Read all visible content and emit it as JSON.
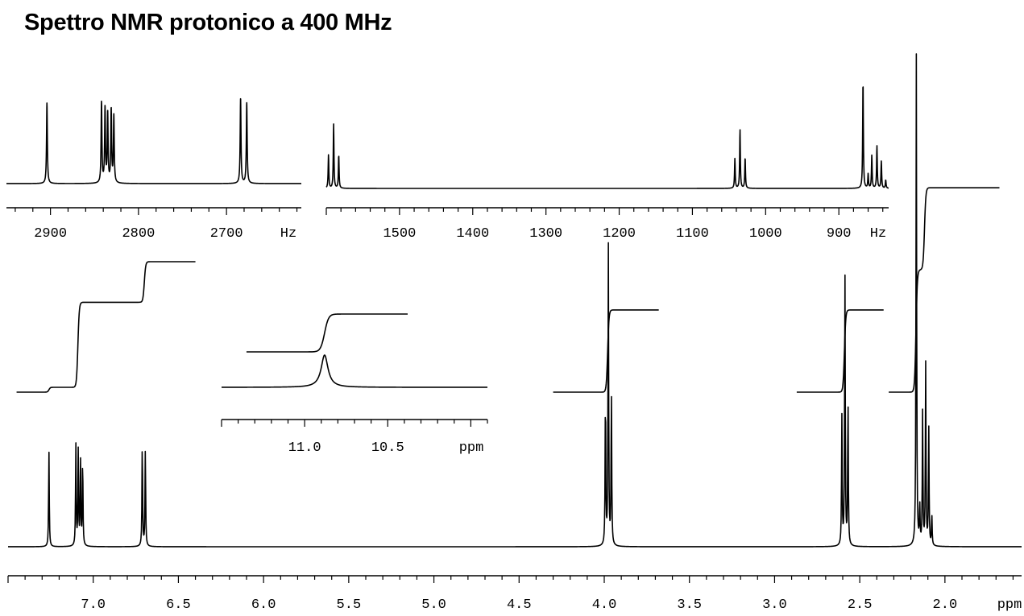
{
  "title": "Spettro NMR protonico a 400 MHz",
  "chart_data": [
    {
      "id": "main",
      "type": "line",
      "subtype": "nmr-spectrum",
      "xlabel": "ppm",
      "x_reversed": true,
      "xlim": [
        7.5,
        1.55
      ],
      "tick_labels": [
        "7.0",
        "6.5",
        "6.0",
        "5.5",
        "5.0",
        "4.5",
        "4.0",
        "3.5",
        "3.0",
        "2.5",
        "2.0"
      ],
      "peaks": [
        {
          "ppm": 7.26,
          "height": 0.53
        },
        {
          "ppm": 7.102,
          "height": 0.56
        },
        {
          "ppm": 7.088,
          "height": 0.52
        },
        {
          "ppm": 7.075,
          "height": 0.5
        },
        {
          "ppm": 7.062,
          "height": 0.48
        },
        {
          "ppm": 6.712,
          "height": 0.58
        },
        {
          "ppm": 6.694,
          "height": 0.54
        },
        {
          "ppm": 3.993,
          "height": 0.85
        },
        {
          "ppm": 3.976,
          "height": 1.67
        },
        {
          "ppm": 3.958,
          "height": 0.85
        },
        {
          "ppm": 2.605,
          "height": 0.71
        },
        {
          "ppm": 2.587,
          "height": 1.51
        },
        {
          "ppm": 2.569,
          "height": 0.81
        },
        {
          "ppm": 2.168,
          "height": 2.72
        },
        {
          "ppm": 2.148,
          "height": 0.22
        },
        {
          "ppm": 2.131,
          "height": 0.74
        },
        {
          "ppm": 2.113,
          "height": 1.0
        },
        {
          "ppm": 2.095,
          "height": 0.66
        },
        {
          "ppm": 2.077,
          "height": 0.17
        }
      ],
      "integrals": [
        {
          "from": 7.45,
          "to": 6.4,
          "steps": [
            {
              "ppm": 7.26,
              "rise": 0.05
            },
            {
              "ppm": 7.09,
              "rise": 0.88
            },
            {
              "ppm": 6.7,
              "rise": 0.42
            }
          ]
        },
        {
          "from": 4.3,
          "to": 3.68,
          "steps": [
            {
              "ppm": 3.98,
              "rise": 0.88
            }
          ]
        },
        {
          "from": 2.87,
          "to": 2.36,
          "steps": [
            {
              "ppm": 2.59,
              "rise": 0.88
            }
          ]
        },
        {
          "from": 2.33,
          "to": 1.68,
          "steps": [
            {
              "ppm": 2.17,
              "rise": 1.0
            },
            {
              "ppm": 2.12,
              "rise": 0.67
            }
          ]
        }
      ]
    },
    {
      "id": "inset-ppm",
      "type": "line",
      "subtype": "nmr-spectrum",
      "xlabel": "ppm",
      "x_reversed": true,
      "xlim": [
        11.5,
        9.9
      ],
      "tick_labels": [
        "11.0",
        "10.5"
      ],
      "peaks": [
        {
          "ppm": 10.88,
          "height": 1.0,
          "width": 0.025
        }
      ],
      "integrals": [
        {
          "from": 11.35,
          "to": 10.38,
          "steps": [
            {
              "ppm": 10.88,
              "rise": 1.0
            }
          ]
        }
      ]
    },
    {
      "id": "inset-hz-left",
      "type": "line",
      "subtype": "nmr-expansion",
      "xlabel": "Hz",
      "x_reversed": true,
      "xlim": [
        2950,
        2615
      ],
      "tick_labels": [
        "2900",
        "2800",
        "2700"
      ],
      "peaks": [
        {
          "hz": 2904,
          "height": 1.0
        },
        {
          "hz": 2842,
          "height": 1.0
        },
        {
          "hz": 2838,
          "height": 0.92
        },
        {
          "hz": 2835,
          "height": 0.86
        },
        {
          "hz": 2831,
          "height": 0.9
        },
        {
          "hz": 2828,
          "height": 0.83
        },
        {
          "hz": 2684,
          "height": 1.06
        },
        {
          "hz": 2677,
          "height": 1.0
        }
      ]
    },
    {
      "id": "inset-hz-right",
      "type": "line",
      "subtype": "nmr-expansion",
      "xlabel": "Hz",
      "x_reversed": true,
      "xlim": [
        1600,
        832
      ],
      "tick_labels": [
        "1500",
        "1400",
        "1300",
        "1200",
        "1100",
        "1000",
        "900"
      ],
      "peaks": [
        {
          "hz": 1597,
          "height": 0.52
        },
        {
          "hz": 1590,
          "height": 1.0
        },
        {
          "hz": 1583,
          "height": 0.52
        },
        {
          "hz": 1042,
          "height": 0.46
        },
        {
          "hz": 1035,
          "height": 0.92
        },
        {
          "hz": 1028,
          "height": 0.48
        },
        {
          "hz": 867,
          "height": 1.68
        },
        {
          "hz": 860,
          "height": 0.22
        },
        {
          "hz": 855,
          "height": 0.51
        },
        {
          "hz": 848,
          "height": 0.66
        },
        {
          "hz": 842,
          "height": 0.42
        },
        {
          "hz": 836,
          "height": 0.13
        }
      ]
    }
  ]
}
